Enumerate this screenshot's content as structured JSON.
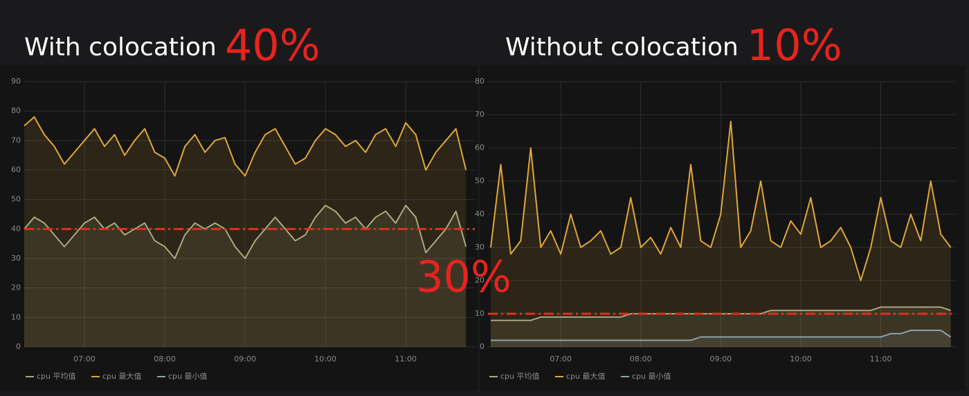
{
  "chart_data": [
    {
      "type": "line",
      "title": "With colocation",
      "highlight": "40%",
      "highlight_color": "#e8231e",
      "reference_line": {
        "value": 40,
        "color": "#e0301e"
      },
      "x": [
        6.25,
        6.375,
        6.5,
        6.625,
        6.75,
        6.875,
        7,
        7.125,
        7.25,
        7.375,
        7.5,
        7.625,
        7.75,
        7.875,
        8,
        8.125,
        8.25,
        8.375,
        8.5,
        8.625,
        8.75,
        8.875,
        9,
        9.125,
        9.25,
        9.375,
        9.5,
        9.625,
        9.75,
        9.875,
        10,
        10.125,
        10.25,
        10.375,
        10.5,
        10.625,
        10.75,
        10.875,
        11,
        11.125,
        11.25,
        11.375,
        11.5,
        11.625,
        11.75
      ],
      "xlim": [
        6.25,
        11.86
      ],
      "xticks": [
        {
          "value": 7,
          "label": "07:00"
        },
        {
          "value": 8,
          "label": "08:00"
        },
        {
          "value": 9,
          "label": "09:00"
        },
        {
          "value": 10,
          "label": "10:00"
        },
        {
          "value": 11,
          "label": "11:00"
        }
      ],
      "ylim": [
        0,
        90
      ],
      "yticks": [
        0,
        10,
        20,
        30,
        40,
        50,
        60,
        70,
        80,
        90
      ],
      "grid": true,
      "series": [
        {
          "name": "cpu 平均值",
          "color": "#a9a98a",
          "values": [
            40,
            44,
            42,
            38,
            34,
            38,
            42,
            44,
            40,
            42,
            38,
            40,
            42,
            36,
            34,
            30,
            38,
            42,
            40,
            42,
            40,
            34,
            30,
            36,
            40,
            44,
            40,
            36,
            38,
            44,
            48,
            46,
            42,
            44,
            40,
            44,
            46,
            42,
            48,
            44,
            32,
            36,
            40,
            46,
            34
          ]
        },
        {
          "name": "cpu 最大值",
          "color": "#e0a83a",
          "values": [
            75,
            78,
            72,
            68,
            62,
            66,
            70,
            74,
            68,
            72,
            65,
            70,
            74,
            66,
            64,
            58,
            68,
            72,
            66,
            70,
            71,
            62,
            58,
            66,
            72,
            74,
            68,
            62,
            64,
            70,
            74,
            72,
            68,
            70,
            66,
            72,
            74,
            68,
            76,
            72,
            60,
            66,
            70,
            74,
            60
          ]
        },
        {
          "name": "cpu 最小值",
          "color": "#8fa3ab",
          "values": [
            null,
            null,
            null,
            null,
            null,
            null,
            null,
            null,
            null,
            null,
            null,
            null,
            null,
            null,
            null,
            null,
            null,
            null,
            null,
            null,
            null,
            null,
            null,
            null,
            null,
            null,
            null,
            null,
            null,
            null,
            null,
            null,
            null,
            null,
            null,
            null,
            null,
            null,
            null,
            null,
            null,
            null,
            null,
            null,
            null
          ]
        }
      ]
    },
    {
      "type": "line",
      "title": "Without colocation",
      "highlight": "10%",
      "highlight_color": "#e8231e",
      "reference_line": {
        "value": 10,
        "color": "#e0301e"
      },
      "x": [
        6.125,
        6.25,
        6.375,
        6.5,
        6.625,
        6.75,
        6.875,
        7,
        7.125,
        7.25,
        7.375,
        7.5,
        7.625,
        7.75,
        7.875,
        8,
        8.125,
        8.25,
        8.375,
        8.5,
        8.625,
        8.75,
        8.875,
        9,
        9.125,
        9.25,
        9.375,
        9.5,
        9.625,
        9.75,
        9.875,
        10,
        10.125,
        10.25,
        10.375,
        10.5,
        10.625,
        10.75,
        10.875,
        11,
        11.125,
        11.25,
        11.375,
        11.5,
        11.625,
        11.75,
        11.875
      ],
      "xlim": [
        6.09,
        11.93
      ],
      "xticks": [
        {
          "value": 7,
          "label": "07:00"
        },
        {
          "value": 8,
          "label": "08:00"
        },
        {
          "value": 9,
          "label": "09:00"
        },
        {
          "value": 10,
          "label": "10:00"
        },
        {
          "value": 11,
          "label": "11:00"
        }
      ],
      "ylim": [
        0,
        80
      ],
      "yticks": [
        0,
        10,
        20,
        30,
        40,
        50,
        60,
        70,
        80
      ],
      "grid": true,
      "series": [
        {
          "name": "cpu 平均值",
          "color": "#a9a98a",
          "values": [
            8,
            8,
            8,
            8,
            8,
            9,
            9,
            9,
            9,
            9,
            9,
            9,
            9,
            9,
            10,
            10,
            10,
            10,
            10,
            10,
            10,
            10,
            10,
            10,
            10,
            10,
            10,
            10,
            11,
            11,
            11,
            11,
            11,
            11,
            11,
            11,
            11,
            11,
            11,
            12,
            12,
            12,
            12,
            12,
            12,
            12,
            11
          ]
        },
        {
          "name": "cpu 最大值",
          "color": "#e0a83a",
          "values": [
            30,
            55,
            28,
            32,
            60,
            30,
            35,
            28,
            40,
            30,
            32,
            35,
            28,
            30,
            45,
            30,
            33,
            28,
            36,
            30,
            55,
            32,
            30,
            40,
            68,
            30,
            35,
            50,
            32,
            30,
            38,
            34,
            45,
            30,
            32,
            36,
            30,
            20,
            30,
            45,
            32,
            30,
            40,
            32,
            50,
            34,
            30
          ]
        },
        {
          "name": "cpu 最小值",
          "color": "#8fa3ab",
          "values": [
            2,
            2,
            2,
            2,
            2,
            2,
            2,
            2,
            2,
            2,
            2,
            2,
            2,
            2,
            2,
            2,
            2,
            2,
            2,
            2,
            2,
            3,
            3,
            3,
            3,
            3,
            3,
            3,
            3,
            3,
            3,
            3,
            3,
            3,
            3,
            3,
            3,
            3,
            3,
            3,
            4,
            4,
            5,
            5,
            5,
            5,
            3
          ]
        }
      ]
    }
  ],
  "annotation": "30%"
}
